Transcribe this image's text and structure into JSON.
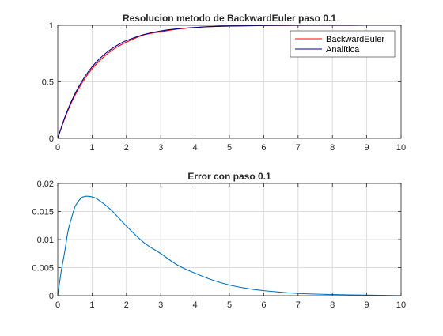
{
  "chart_data": [
    {
      "type": "line",
      "title": "Resolucion metodo de BackwardEuler paso 0.1",
      "xlim": [
        0,
        10
      ],
      "ylim": [
        0,
        1
      ],
      "xticks": [
        "0",
        "1",
        "2",
        "3",
        "4",
        "5",
        "6",
        "7",
        "8",
        "9",
        "10"
      ],
      "yticks": [
        "0",
        "0.5",
        "1"
      ],
      "grid": true,
      "legend": "top-right",
      "series": [
        {
          "name": "BackwardEuler",
          "color": "#ff0000",
          "x": [
            0,
            0.2,
            0.4,
            0.6,
            0.8,
            1.0,
            1.2,
            1.4,
            1.6,
            1.8,
            2.0,
            2.5,
            3.0,
            3.5,
            4.0,
            4.5,
            5.0,
            6.0,
            7.0,
            8.0,
            9.0,
            10.0
          ],
          "y": [
            0,
            0.1736,
            0.3169,
            0.4354,
            0.5333,
            0.6145,
            0.6814,
            0.7368,
            0.7826,
            0.8204,
            0.8514,
            0.9148,
            0.9427,
            0.9667,
            0.9806,
            0.9887,
            0.9935,
            0.9978,
            0.9993,
            0.9998,
            0.9999,
            1.0
          ]
        },
        {
          "name": "Analítica",
          "color": "#00008b",
          "x": [
            0,
            0.2,
            0.4,
            0.6,
            0.8,
            1.0,
            1.2,
            1.4,
            1.6,
            1.8,
            2.0,
            2.5,
            3.0,
            3.5,
            4.0,
            4.5,
            5.0,
            6.0,
            7.0,
            8.0,
            9.0,
            10.0
          ],
          "y": [
            0,
            0.1813,
            0.3297,
            0.4512,
            0.5507,
            0.6321,
            0.6988,
            0.7534,
            0.7981,
            0.8347,
            0.8647,
            0.9179,
            0.9502,
            0.9698,
            0.9817,
            0.9889,
            0.9933,
            0.9975,
            0.9991,
            0.9997,
            0.9999,
            1.0
          ]
        }
      ]
    },
    {
      "type": "line",
      "title": "Error con paso 0.1",
      "xlim": [
        0,
        10
      ],
      "ylim": [
        0,
        0.02
      ],
      "xticks": [
        "0",
        "1",
        "2",
        "3",
        "4",
        "5",
        "6",
        "7",
        "8",
        "9",
        "10"
      ],
      "yticks": [
        "0",
        "0.005",
        "0.01",
        "0.015",
        "0.02"
      ],
      "grid": true,
      "series": [
        {
          "color": "#0072bd",
          "x": [
            0,
            0.1,
            0.2,
            0.3,
            0.4,
            0.5,
            0.6,
            0.7,
            0.8,
            0.9,
            1.0,
            1.1,
            1.2,
            1.4,
            1.6,
            1.8,
            2.0,
            2.5,
            3.0,
            3.5,
            4.0,
            4.5,
            5.0,
            5.5,
            6.0,
            7.0,
            8.0,
            9.0,
            10.0
          ],
          "y": [
            0,
            0.0043,
            0.0077,
            0.0115,
            0.0138,
            0.0158,
            0.0168,
            0.0175,
            0.0177,
            0.0177,
            0.0176,
            0.0174,
            0.017,
            0.0161,
            0.015,
            0.0137,
            0.0124,
            0.0095,
            0.0075,
            0.0054,
            0.004,
            0.0028,
            0.0019,
            0.0013,
            0.0009,
            0.0004,
            0.0002,
            0.0001,
            0.0
          ]
        }
      ]
    }
  ]
}
